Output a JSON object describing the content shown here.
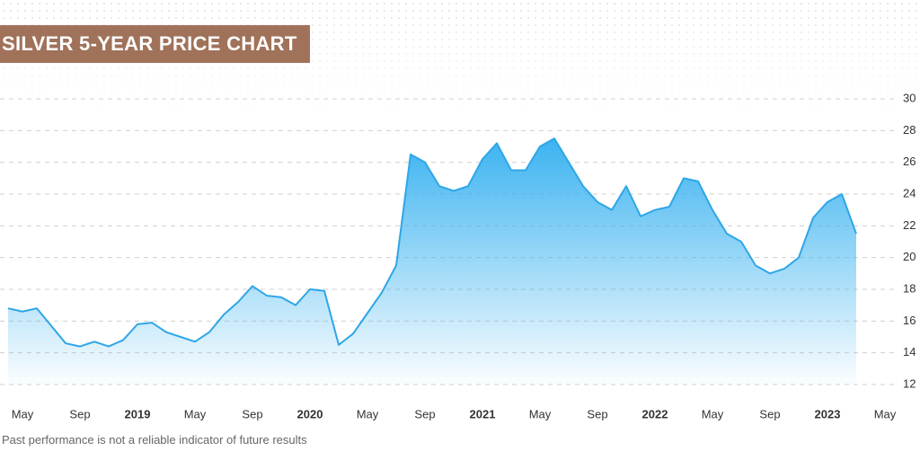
{
  "chart_data": {
    "type": "area",
    "title": "SILVER 5-YEAR PRICE CHART",
    "note": "Past performance is not a reliable indicator of future results",
    "categories": [
      null,
      "May",
      null,
      null,
      null,
      "Sep",
      null,
      null,
      null,
      "2019",
      null,
      null,
      null,
      "May",
      null,
      null,
      null,
      "Sep",
      null,
      null,
      null,
      "2020",
      null,
      null,
      null,
      "May",
      null,
      null,
      null,
      "Sep",
      null,
      null,
      null,
      "2021",
      null,
      null,
      null,
      "May",
      null,
      null,
      null,
      "Sep",
      null,
      null,
      null,
      "2022",
      null,
      null,
      null,
      "May",
      null,
      null,
      null,
      "Sep",
      null,
      null,
      null,
      "2023",
      null,
      null,
      null,
      "May"
    ],
    "values": [
      16.8,
      16.6,
      16.8,
      15.7,
      14.6,
      14.4,
      14.7,
      14.4,
      14.8,
      15.8,
      15.9,
      15.3,
      15.0,
      14.7,
      15.3,
      16.4,
      17.2,
      18.2,
      17.6,
      17.5,
      17.0,
      18.0,
      17.9,
      14.5,
      15.2,
      16.5,
      17.8,
      19.5,
      26.5,
      26.0,
      24.5,
      24.2,
      24.5,
      26.2,
      27.2,
      25.5,
      25.5,
      27.0,
      27.5,
      26.0,
      24.5,
      23.5,
      23.0,
      24.5,
      22.6,
      23.0,
      23.2,
      25.0,
      24.8,
      23.0,
      21.5,
      21.0,
      19.5,
      19.0,
      19.3,
      20.0,
      22.5,
      23.5,
      24.0,
      21.5,
      null,
      null
    ],
    "color": "#2ea6e6",
    "ylim": [
      12,
      30
    ],
    "yticks": [
      12,
      14,
      16,
      18,
      20,
      22,
      24,
      26,
      28,
      30
    ],
    "grid": true
  }
}
